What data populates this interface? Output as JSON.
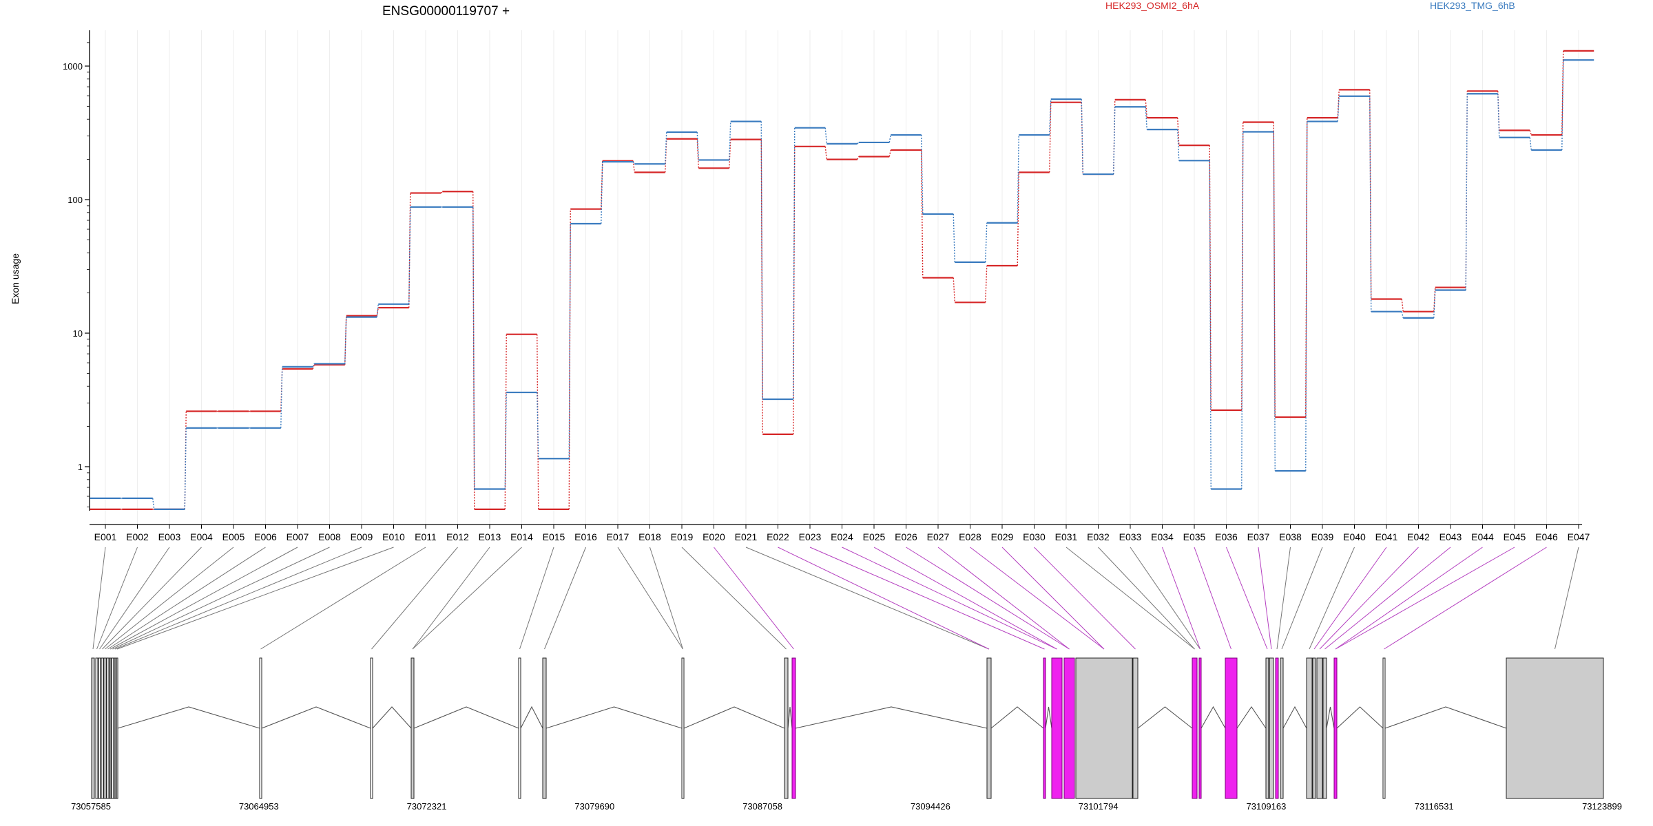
{
  "chart_data": {
    "type": "line",
    "title": "ENSG00000119707 +",
    "ylabel": "Exon usage",
    "y_scale": "log",
    "ylim": [
      0.4,
      1800
    ],
    "yticks": [
      1,
      10,
      100,
      1000
    ],
    "grid": "vertical lines at each exon",
    "legend": [
      {
        "name": "HEK293_OSMI2_6hA",
        "color": "#d62728"
      },
      {
        "name": "HEK293_TMG_6hB",
        "color": "#3a7bbf"
      }
    ],
    "categories": [
      "E001",
      "E002",
      "E003",
      "E004",
      "E005",
      "E006",
      "E007",
      "E008",
      "E009",
      "E010",
      "E011",
      "E012",
      "E013",
      "E014",
      "E015",
      "E016",
      "E017",
      "E018",
      "E019",
      "E020",
      "E021",
      "E022",
      "E023",
      "E024",
      "E025",
      "E026",
      "E027",
      "E028",
      "E029",
      "E030",
      "E031",
      "E032",
      "E033",
      "E034",
      "E035",
      "E036",
      "E037",
      "E038",
      "E039",
      "E040",
      "E041",
      "E042",
      "E043",
      "E044",
      "E045",
      "E046",
      "E047"
    ],
    "series": [
      {
        "name": "HEK293_OSMI2_6hA",
        "color": "#d62728",
        "values": [
          0.48,
          0.48,
          0.48,
          2.6,
          2.6,
          2.6,
          5.4,
          5.8,
          13.5,
          15.5,
          112,
          115,
          0.48,
          9.8,
          0.48,
          85,
          195,
          160,
          285,
          172,
          282,
          1.75,
          250,
          200,
          210,
          235,
          26,
          17,
          32,
          160,
          535,
          155,
          560,
          410,
          255,
          2.65,
          380,
          2.35,
          410,
          665,
          18,
          14.5,
          22,
          650,
          330,
          305,
          1300
        ]
      },
      {
        "name": "HEK293_TMG_6hB",
        "color": "#3a7bbf",
        "values": [
          0.58,
          0.58,
          0.48,
          1.95,
          1.95,
          1.95,
          5.6,
          5.9,
          13.2,
          16.5,
          88,
          88,
          0.68,
          3.6,
          1.15,
          66,
          192,
          185,
          320,
          198,
          385,
          3.2,
          345,
          262,
          268,
          305,
          78,
          34,
          67,
          305,
          565,
          155,
          495,
          335,
          196,
          0.68,
          322,
          0.93,
          385,
          595,
          14.5,
          13,
          21,
          620,
          292,
          235,
          1110
        ]
      }
    ],
    "gene_model": {
      "exon_usage_highlight": [
        "E020",
        "E022",
        "E023",
        "E024",
        "E025",
        "E026",
        "E027",
        "E028",
        "E029",
        "E030",
        "E034",
        "E035",
        "E036",
        "E037",
        "E041",
        "E042",
        "E043",
        "E044",
        "E045",
        "E046"
      ],
      "highlight_color": "#ee22ee",
      "coordinate_ticks": [
        "73057585",
        "73064953",
        "73072321",
        "73079690",
        "73087058",
        "73094426",
        "73101794",
        "73109163",
        "73116531",
        "73123899"
      ]
    }
  }
}
